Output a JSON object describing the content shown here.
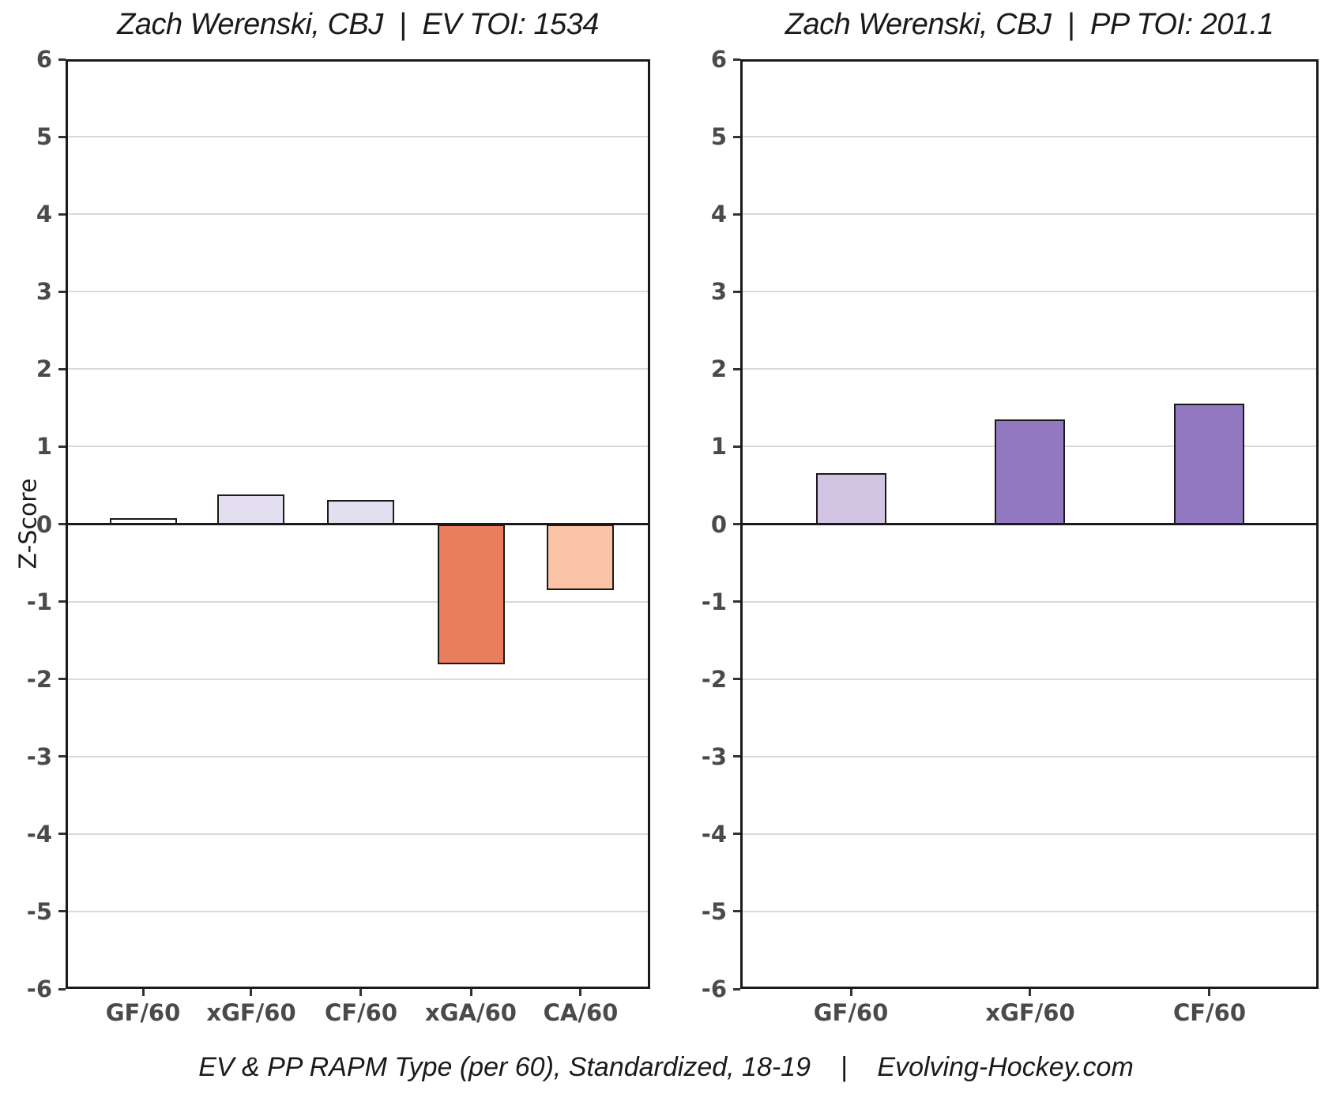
{
  "figure": {
    "y_axis_label": "Z-Score",
    "footer": "EV & PP RAPM Type (per 60), Standardized, 18-19    |    Evolving-Hockey.com"
  },
  "colors": {
    "axis": "#1a1a1a",
    "gridline": "#d9d9d9",
    "tick_label": "#4a4a4a",
    "pale_lavender": "#e4dff0",
    "white_bar": "#ffffff",
    "orange": "#e97e5d",
    "peach": "#fbc4a9",
    "light_purple": "#d2c5e4",
    "medium_purple": "#9278c0"
  },
  "chart_data": [
    {
      "type": "bar",
      "title": "Zach Werenski, CBJ  |  EV TOI: 1534",
      "ylabel": "Z-Score",
      "xlabel": "",
      "categories": [
        "GF/60",
        "xGF/60",
        "CF/60",
        "xGA/60",
        "CA/60"
      ],
      "values": [
        0.08,
        0.39,
        0.32,
        -1.8,
        -0.85
      ],
      "bar_colors": [
        "#ffffff",
        "#e4dff0",
        "#e4dff0",
        "#e97e5d",
        "#fbc4a9"
      ],
      "ylim": [
        -6,
        6
      ],
      "yticks": [
        6,
        5,
        4,
        3,
        2,
        1,
        0,
        -1,
        -2,
        -3,
        -4,
        -5,
        -6
      ],
      "grid": true,
      "legend": false
    },
    {
      "type": "bar",
      "title": "Zach Werenski, CBJ  |  PP TOI: 201.1",
      "ylabel": "Z-Score",
      "xlabel": "",
      "categories": [
        "GF/60",
        "xGF/60",
        "CF/60"
      ],
      "values": [
        0.66,
        1.36,
        1.56
      ],
      "bar_colors": [
        "#d2c5e4",
        "#9278c0",
        "#9278c0"
      ],
      "ylim": [
        -6,
        6
      ],
      "yticks": [
        6,
        5,
        4,
        3,
        2,
        1,
        0,
        -1,
        -2,
        -3,
        -4,
        -5,
        -6
      ],
      "grid": true,
      "legend": false
    }
  ]
}
